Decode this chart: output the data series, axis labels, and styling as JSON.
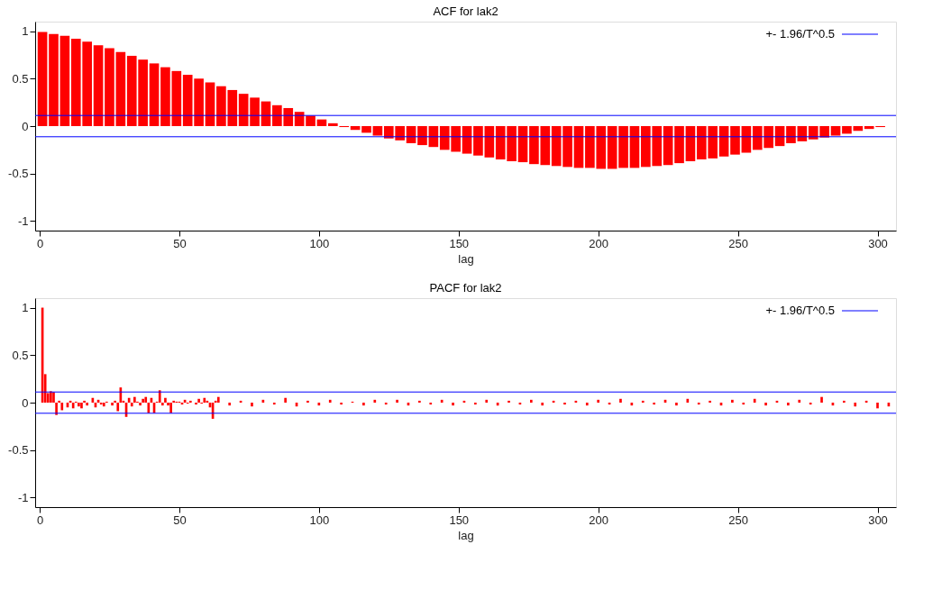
{
  "chart_data": [
    {
      "type": "bar",
      "title": "ACF for lak2",
      "xlabel": "lag",
      "xlim": [
        0,
        305
      ],
      "xticks": [
        0,
        50,
        100,
        150,
        200,
        250,
        300
      ],
      "ylim": [
        -1.1,
        1.1
      ],
      "yticks": [
        -1,
        -0.5,
        0,
        0.5,
        1
      ],
      "grid": false,
      "legend": "top right",
      "x": [
        1,
        5,
        9,
        13,
        17,
        21,
        25,
        29,
        33,
        37,
        41,
        45,
        49,
        53,
        57,
        61,
        65,
        69,
        73,
        77,
        81,
        85,
        89,
        93,
        97,
        101,
        105,
        109,
        113,
        117,
        121,
        125,
        129,
        133,
        137,
        141,
        145,
        149,
        153,
        157,
        161,
        165,
        169,
        173,
        177,
        181,
        185,
        189,
        193,
        197,
        201,
        205,
        209,
        213,
        217,
        221,
        225,
        229,
        233,
        237,
        241,
        245,
        249,
        253,
        257,
        261,
        265,
        269,
        273,
        277,
        281,
        285,
        289,
        293,
        297,
        301
      ],
      "series": [
        {
          "color": "#ff0000",
          "values": [
            0.99,
            0.97,
            0.95,
            0.92,
            0.89,
            0.85,
            0.82,
            0.78,
            0.74,
            0.7,
            0.66,
            0.62,
            0.58,
            0.54,
            0.5,
            0.46,
            0.42,
            0.38,
            0.34,
            0.3,
            0.26,
            0.22,
            0.19,
            0.15,
            0.11,
            0.07,
            0.03,
            -0.01,
            -0.04,
            -0.07,
            -0.1,
            -0.13,
            -0.15,
            -0.18,
            -0.2,
            -0.22,
            -0.25,
            -0.27,
            -0.29,
            -0.31,
            -0.33,
            -0.35,
            -0.37,
            -0.38,
            -0.4,
            -0.41,
            -0.42,
            -0.43,
            -0.44,
            -0.44,
            -0.45,
            -0.45,
            -0.44,
            -0.44,
            -0.43,
            -0.42,
            -0.41,
            -0.39,
            -0.37,
            -0.35,
            -0.34,
            -0.32,
            -0.3,
            -0.28,
            -0.25,
            -0.23,
            -0.21,
            -0.18,
            -0.16,
            -0.14,
            -0.12,
            -0.1,
            -0.08,
            -0.05,
            -0.03,
            -0.01
          ]
        }
      ],
      "ref_lines": [
        {
          "axis": "y",
          "value": 0.112,
          "label": "+- 1.96/T^0.5",
          "color": "#0000ff"
        },
        {
          "axis": "y",
          "value": -0.112,
          "color": "#0000ff"
        }
      ]
    },
    {
      "type": "bar",
      "title": "PACF for lak2",
      "xlabel": "lag",
      "xlim": [
        0,
        305
      ],
      "xticks": [
        0,
        50,
        100,
        150,
        200,
        250,
        300
      ],
      "ylim": [
        -1.1,
        1.1
      ],
      "yticks": [
        -1,
        -0.5,
        0,
        0.5,
        1
      ],
      "grid": false,
      "legend": "top right",
      "x": [
        1,
        2,
        3,
        4,
        5,
        6,
        7,
        8,
        9,
        10,
        11,
        12,
        13,
        14,
        15,
        16,
        17,
        18,
        19,
        20,
        21,
        22,
        23,
        24,
        25,
        26,
        27,
        28,
        29,
        30,
        31,
        32,
        33,
        34,
        35,
        36,
        37,
        38,
        39,
        40,
        41,
        42,
        43,
        44,
        45,
        46,
        47,
        48,
        49,
        50,
        51,
        52,
        53,
        54,
        55,
        56,
        57,
        58,
        59,
        60,
        61,
        62,
        63,
        64,
        68,
        72,
        76,
        80,
        84,
        88,
        92,
        96,
        100,
        104,
        108,
        112,
        116,
        120,
        124,
        128,
        132,
        136,
        140,
        144,
        148,
        152,
        156,
        160,
        164,
        168,
        172,
        176,
        180,
        184,
        188,
        192,
        196,
        200,
        204,
        208,
        212,
        216,
        220,
        224,
        228,
        232,
        236,
        240,
        244,
        248,
        252,
        256,
        260,
        264,
        268,
        272,
        276,
        280,
        284,
        288,
        292,
        296,
        300,
        304
      ],
      "series": [
        {
          "color": "#ff0000",
          "values": [
            1.0,
            0.3,
            0.1,
            0.12,
            0.11,
            -0.13,
            0.02,
            -0.08,
            0.0,
            -0.05,
            0.02,
            -0.06,
            0.01,
            -0.04,
            -0.06,
            0.02,
            -0.03,
            0.0,
            0.05,
            -0.05,
            0.03,
            -0.02,
            -0.04,
            0.01,
            0.0,
            -0.03,
            0.02,
            -0.09,
            0.16,
            0.02,
            -0.15,
            0.05,
            -0.04,
            0.06,
            0.01,
            -0.03,
            0.04,
            0.06,
            -0.11,
            0.05,
            -0.11,
            0.01,
            0.13,
            -0.03,
            0.05,
            -0.03,
            -0.11,
            0.02,
            0.01,
            0.01,
            -0.02,
            0.03,
            -0.01,
            0.02,
            0.0,
            -0.02,
            0.04,
            -0.01,
            0.05,
            0.02,
            -0.05,
            -0.17,
            0.02,
            0.06,
            -0.03,
            0.02,
            -0.04,
            0.03,
            -0.02,
            0.05,
            -0.04,
            0.02,
            -0.03,
            0.03,
            -0.02,
            0.01,
            -0.03,
            0.03,
            -0.02,
            0.03,
            -0.03,
            0.02,
            -0.02,
            0.03,
            -0.03,
            0.02,
            -0.02,
            0.03,
            -0.03,
            0.02,
            -0.02,
            0.03,
            -0.03,
            0.02,
            -0.02,
            0.02,
            -0.03,
            0.03,
            -0.02,
            0.04,
            -0.03,
            0.02,
            -0.02,
            0.03,
            -0.03,
            0.04,
            -0.02,
            0.02,
            -0.03,
            0.03,
            -0.02,
            0.04,
            -0.03,
            0.02,
            -0.03,
            0.03,
            -0.02,
            0.06,
            -0.03,
            0.02,
            -0.04,
            0.02,
            -0.06,
            -0.04
          ]
        }
      ],
      "ref_lines": [
        {
          "axis": "y",
          "value": 0.112,
          "label": "+- 1.96/T^0.5",
          "color": "#0000ff"
        },
        {
          "axis": "y",
          "value": -0.112,
          "color": "#0000ff"
        }
      ]
    }
  ]
}
